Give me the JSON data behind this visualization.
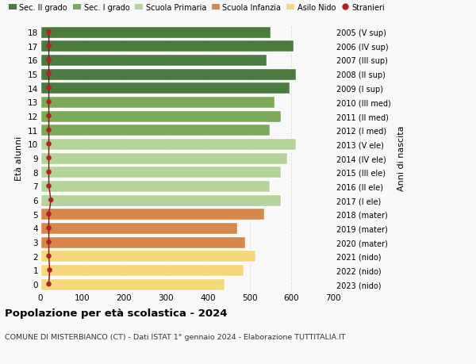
{
  "ages": [
    18,
    17,
    16,
    15,
    14,
    13,
    12,
    11,
    10,
    9,
    8,
    7,
    6,
    5,
    4,
    3,
    2,
    1,
    0
  ],
  "years": [
    "2005 (V sup)",
    "2006 (IV sup)",
    "2007 (III sup)",
    "2008 (II sup)",
    "2009 (I sup)",
    "2010 (III med)",
    "2011 (II med)",
    "2012 (I med)",
    "2013 (V ele)",
    "2014 (IV ele)",
    "2015 (III ele)",
    "2016 (II ele)",
    "2017 (I ele)",
    "2018 (mater)",
    "2019 (mater)",
    "2020 (mater)",
    "2021 (nido)",
    "2022 (nido)",
    "2023 (nido)"
  ],
  "values": [
    550,
    605,
    540,
    610,
    595,
    560,
    575,
    548,
    610,
    590,
    575,
    548,
    575,
    535,
    470,
    490,
    515,
    485,
    440
  ],
  "stranieri": [
    20,
    20,
    20,
    20,
    20,
    20,
    20,
    20,
    20,
    20,
    20,
    20,
    25,
    20,
    20,
    20,
    20,
    22,
    20
  ],
  "bar_colors": [
    "#4a7c3f",
    "#4a7c3f",
    "#4a7c3f",
    "#4a7c3f",
    "#4a7c3f",
    "#7aaa5a",
    "#7aaa5a",
    "#7aaa5a",
    "#b5d49b",
    "#b5d49b",
    "#b5d49b",
    "#b5d49b",
    "#b5d49b",
    "#d4884a",
    "#d4884a",
    "#d4884a",
    "#f5d87a",
    "#f5d87a",
    "#f5d87a"
  ],
  "legend_labels": [
    "Sec. II grado",
    "Sec. I grado",
    "Scuola Primaria",
    "Scuola Infanzia",
    "Asilo Nido",
    "Stranieri"
  ],
  "legend_colors": [
    "#4a7c3f",
    "#7aaa5a",
    "#b5d49b",
    "#d4884a",
    "#f5d87a",
    "#b22222"
  ],
  "title": "Popolazione per età scolastica - 2024",
  "subtitle": "COMUNE DI MISTERBIANCO (CT) - Dati ISTAT 1° gennaio 2024 - Elaborazione TUTTITALIA.IT",
  "ylabel_left": "Età alunni",
  "ylabel_right": "Anni di nascita",
  "xlim": [
    0,
    700
  ],
  "xticks": [
    0,
    100,
    200,
    300,
    400,
    500,
    600,
    700
  ],
  "stranieri_color": "#b22222",
  "stranieri_line_color": "#8b1010",
  "bg_color": "#f8f8f8",
  "grid_color": "#dddddd"
}
